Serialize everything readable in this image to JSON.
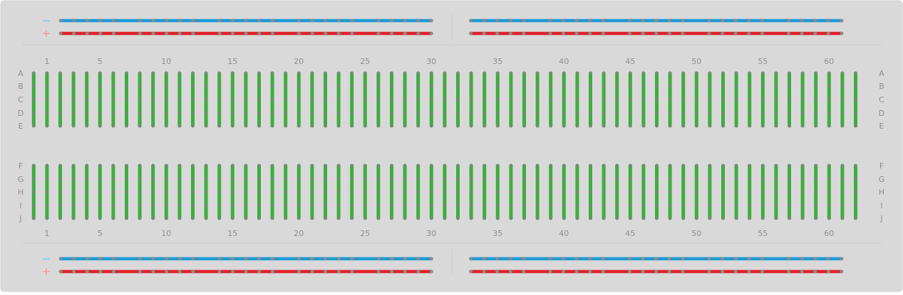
{
  "rail_signs": {
    "minus": "−",
    "plus": "+"
  },
  "row_labels_top": [
    "A",
    "B",
    "C",
    "D",
    "E"
  ],
  "row_labels_bottom": [
    "F",
    "G",
    "H",
    "I",
    "J"
  ],
  "column_numbers": [
    "1",
    "5",
    "10",
    "15",
    "20",
    "25",
    "30",
    "35",
    "40",
    "45",
    "50",
    "55",
    "60"
  ],
  "colors": {
    "board": "#d9d9d9",
    "hole": "#c4c4c4",
    "strip": "#3dae3d",
    "negative_rail": "#1f9ad6",
    "positive_rail": "#e0222b",
    "label_text": "#8e8e8e",
    "minus_sign": "#8fc7e6",
    "plus_sign": "#f0a3a5"
  }
}
